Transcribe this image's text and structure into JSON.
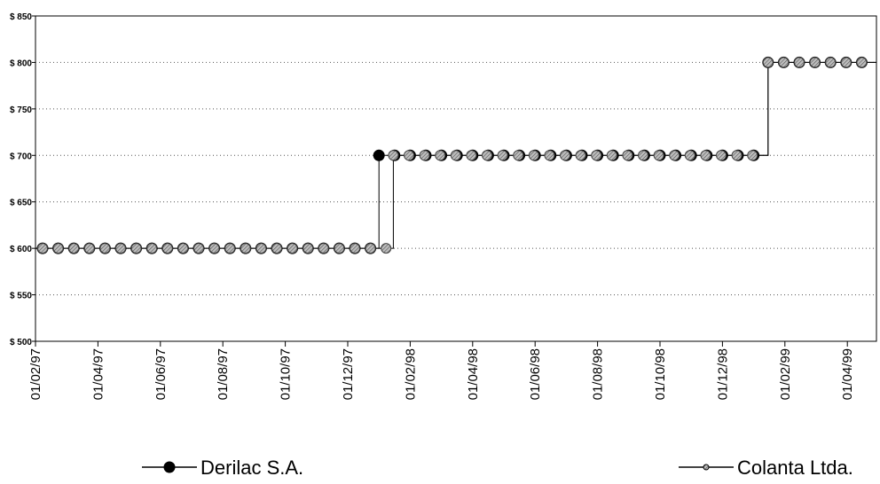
{
  "chart_data": {
    "type": "line",
    "title": "",
    "xlabel": "",
    "ylabel": "",
    "ylim": [
      500,
      850
    ],
    "y_ticks": [
      "$ 850",
      "$ 800",
      "$ 750",
      "$ 700",
      "$ 650",
      "$ 600",
      "$ 550",
      "$ 500"
    ],
    "x_ticks": [
      "01/02/97",
      "01/04/97",
      "01/06/97",
      "01/08/97",
      "01/10/97",
      "01/12/97",
      "01/02/98",
      "01/04/98",
      "01/06/98",
      "01/08/98",
      "01/10/98",
      "01/12/98",
      "01/02/99",
      "01/04/99"
    ],
    "grid": "horizontal-dotted",
    "legend_placement": "bottom",
    "series": [
      {
        "name": "Derilac S.A.",
        "color": "#000000",
        "marker": "filled-circle",
        "segments": [
          {
            "from": "1997-01-01",
            "to": "1998-01-01",
            "value": 600
          },
          {
            "from": "1998-01-01",
            "to": "1999-01-15",
            "value": 700
          },
          {
            "from": "1999-01-15",
            "to": "1999-06-15",
            "value": 800
          }
        ]
      },
      {
        "name": "Colanta Ltda.",
        "color": "#7a7a7a",
        "marker": "hatched-circle",
        "segments": [
          {
            "from": "1997-01-01",
            "to": "1998-01-15",
            "value": 600
          },
          {
            "from": "1998-01-15",
            "to": "1999-01-15",
            "value": 700
          },
          {
            "from": "1999-01-15",
            "to": "1999-06-15",
            "value": 800
          }
        ]
      }
    ]
  }
}
